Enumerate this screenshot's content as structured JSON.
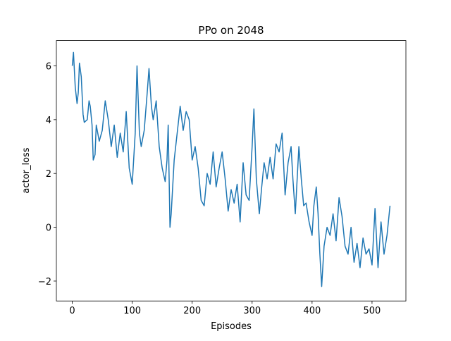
{
  "chart_data": {
    "type": "line",
    "title": "PPo on 2048",
    "x_label": "Episodes",
    "y_label": "actor_loss",
    "x": [
      0,
      2,
      5,
      8,
      10,
      12,
      15,
      18,
      20,
      25,
      28,
      30,
      33,
      35,
      38,
      40,
      45,
      50,
      55,
      60,
      65,
      70,
      75,
      80,
      85,
      90,
      95,
      100,
      105,
      108,
      112,
      115,
      120,
      125,
      128,
      132,
      135,
      140,
      145,
      150,
      155,
      158,
      160,
      163,
      165,
      170,
      175,
      180,
      185,
      190,
      195,
      200,
      205,
      210,
      215,
      220,
      225,
      230,
      235,
      240,
      245,
      250,
      255,
      260,
      265,
      270,
      275,
      280,
      285,
      290,
      295,
      300,
      303,
      307,
      312,
      316,
      320,
      325,
      330,
      335,
      340,
      345,
      350,
      355,
      360,
      365,
      368,
      372,
      378,
      382,
      386,
      390,
      395,
      400,
      403,
      407,
      410,
      413,
      416,
      420,
      425,
      430,
      435,
      440,
      445,
      450,
      455,
      460,
      465,
      470,
      475,
      480,
      485,
      490,
      495,
      500,
      505,
      510,
      515,
      520,
      525,
      530
    ],
    "series": [
      {
        "name": "actor_loss",
        "color": "#1f77b4",
        "values": [
          6.0,
          6.5,
          5.2,
          4.6,
          5.0,
          6.1,
          5.6,
          4.2,
          3.9,
          4.0,
          4.7,
          4.5,
          3.8,
          2.5,
          2.7,
          3.8,
          3.2,
          3.6,
          4.7,
          4.0,
          3.0,
          3.8,
          2.6,
          3.5,
          2.8,
          4.3,
          2.2,
          1.6,
          3.5,
          6.0,
          3.5,
          3.0,
          3.6,
          5.0,
          5.9,
          4.5,
          4.0,
          4.7,
          3.0,
          2.2,
          1.7,
          2.5,
          3.8,
          0.0,
          0.5,
          2.5,
          3.5,
          4.5,
          3.6,
          4.3,
          4.0,
          2.5,
          3.0,
          2.2,
          1.0,
          0.8,
          2.0,
          1.6,
          2.8,
          1.5,
          2.2,
          2.8,
          1.8,
          0.6,
          1.4,
          0.9,
          1.6,
          0.2,
          2.4,
          1.2,
          1.0,
          3.0,
          4.4,
          1.8,
          0.5,
          1.5,
          2.4,
          1.8,
          2.6,
          1.8,
          3.1,
          2.8,
          3.5,
          1.2,
          2.4,
          3.0,
          1.8,
          0.5,
          3.0,
          1.8,
          0.8,
          0.9,
          0.2,
          -0.3,
          0.8,
          1.5,
          0.5,
          -1.0,
          -2.2,
          -0.7,
          0.0,
          -0.3,
          0.5,
          -0.5,
          1.1,
          0.4,
          -0.7,
          -1.0,
          0.0,
          -1.3,
          -0.6,
          -1.5,
          -0.4,
          -1.0,
          -0.8,
          -1.4,
          0.7,
          -1.5,
          0.2,
          -1.0,
          -0.3,
          0.8
        ]
      }
    ],
    "xlim": [
      -26.5,
      556.5
    ],
    "ylim": [
      -2.74,
      6.94
    ],
    "xticks": [
      0,
      100,
      200,
      300,
      400,
      500
    ],
    "yticks": [
      {
        "value": -2,
        "label": "−2"
      },
      0,
      2,
      4,
      6
    ]
  }
}
